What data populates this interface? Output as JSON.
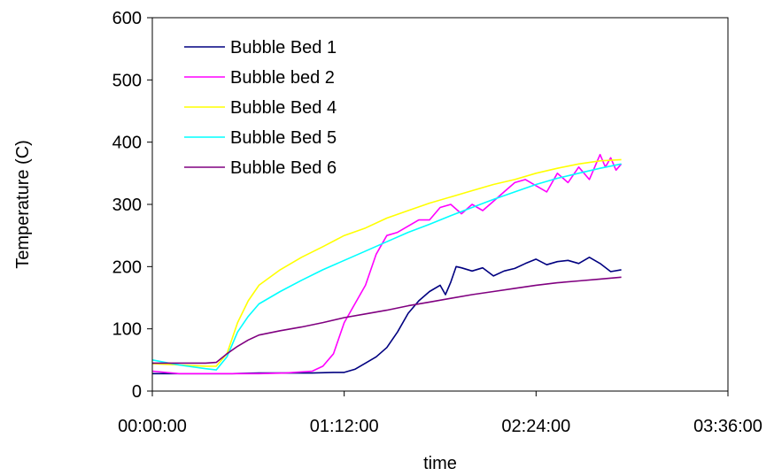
{
  "chart_data": {
    "type": "line",
    "title": "",
    "xlabel": "time",
    "ylabel": "Temperature (C)",
    "x_unit": "h:mm:ss",
    "xlim": [
      "00:00:00",
      "03:36:00"
    ],
    "ylim": [
      0,
      600
    ],
    "x_ticks": [
      "00:00:00",
      "01:12:00",
      "02:24:00",
      "03:36:00"
    ],
    "y_ticks": [
      0,
      100,
      200,
      300,
      400,
      500,
      600
    ],
    "grid": false,
    "legend": "top-left",
    "series": [
      {
        "name": "Bubble Bed 1",
        "color": "#000080",
        "points": [
          [
            "00:00:00",
            28
          ],
          [
            "00:10:00",
            28
          ],
          [
            "00:20:00",
            28
          ],
          [
            "00:30:00",
            28
          ],
          [
            "00:40:00",
            29
          ],
          [
            "00:50:00",
            29
          ],
          [
            "01:00:00",
            29
          ],
          [
            "01:08:00",
            30
          ],
          [
            "01:12:00",
            30
          ],
          [
            "01:16:00",
            35
          ],
          [
            "01:20:00",
            45
          ],
          [
            "01:24:00",
            55
          ],
          [
            "01:28:00",
            70
          ],
          [
            "01:32:00",
            95
          ],
          [
            "01:36:00",
            125
          ],
          [
            "01:40:00",
            145
          ],
          [
            "01:44:00",
            160
          ],
          [
            "01:48:00",
            170
          ],
          [
            "01:50:00",
            155
          ],
          [
            "01:52:00",
            175
          ],
          [
            "01:54:00",
            200
          ],
          [
            "01:56:00",
            198
          ],
          [
            "02:00:00",
            193
          ],
          [
            "02:04:00",
            198
          ],
          [
            "02:08:00",
            185
          ],
          [
            "02:12:00",
            193
          ],
          [
            "02:16:00",
            197
          ],
          [
            "02:20:00",
            205
          ],
          [
            "02:24:00",
            212
          ],
          [
            "02:28:00",
            203
          ],
          [
            "02:32:00",
            208
          ],
          [
            "02:36:00",
            210
          ],
          [
            "02:40:00",
            205
          ],
          [
            "02:44:00",
            215
          ],
          [
            "02:48:00",
            205
          ],
          [
            "02:52:00",
            192
          ],
          [
            "02:56:00",
            195
          ]
        ]
      },
      {
        "name": "Bubble bed 2",
        "color": "#FF00FF",
        "points": [
          [
            "00:00:00",
            32
          ],
          [
            "00:10:00",
            28
          ],
          [
            "00:20:00",
            28
          ],
          [
            "00:30:00",
            28
          ],
          [
            "00:40:00",
            28
          ],
          [
            "00:50:00",
            29
          ],
          [
            "01:00:00",
            32
          ],
          [
            "01:04:00",
            40
          ],
          [
            "01:08:00",
            60
          ],
          [
            "01:12:00",
            110
          ],
          [
            "01:16:00",
            140
          ],
          [
            "01:20:00",
            170
          ],
          [
            "01:24:00",
            220
          ],
          [
            "01:28:00",
            250
          ],
          [
            "01:32:00",
            255
          ],
          [
            "01:36:00",
            265
          ],
          [
            "01:40:00",
            275
          ],
          [
            "01:44:00",
            275
          ],
          [
            "01:48:00",
            295
          ],
          [
            "01:52:00",
            300
          ],
          [
            "01:56:00",
            285
          ],
          [
            "02:00:00",
            300
          ],
          [
            "02:04:00",
            290
          ],
          [
            "02:08:00",
            305
          ],
          [
            "02:12:00",
            320
          ],
          [
            "02:16:00",
            335
          ],
          [
            "02:20:00",
            340
          ],
          [
            "02:24:00",
            330
          ],
          [
            "02:28:00",
            320
          ],
          [
            "02:32:00",
            350
          ],
          [
            "02:36:00",
            335
          ],
          [
            "02:40:00",
            360
          ],
          [
            "02:44:00",
            340
          ],
          [
            "02:48:00",
            380
          ],
          [
            "02:50:00",
            360
          ],
          [
            "02:52:00",
            375
          ],
          [
            "02:54:00",
            355
          ],
          [
            "02:56:00",
            365
          ]
        ]
      },
      {
        "name": "Bubble Bed 4",
        "color": "#FFFF00",
        "points": [
          [
            "00:00:00",
            44
          ],
          [
            "00:10:00",
            42
          ],
          [
            "00:20:00",
            40
          ],
          [
            "00:24:00",
            40
          ],
          [
            "00:28:00",
            60
          ],
          [
            "00:32:00",
            110
          ],
          [
            "00:36:00",
            145
          ],
          [
            "00:40:00",
            170
          ],
          [
            "00:48:00",
            195
          ],
          [
            "00:56:00",
            215
          ],
          [
            "01:04:00",
            232
          ],
          [
            "01:12:00",
            250
          ],
          [
            "01:20:00",
            262
          ],
          [
            "01:28:00",
            278
          ],
          [
            "01:36:00",
            290
          ],
          [
            "01:44:00",
            302
          ],
          [
            "01:52:00",
            312
          ],
          [
            "02:00:00",
            322
          ],
          [
            "02:08:00",
            332
          ],
          [
            "02:16:00",
            340
          ],
          [
            "02:24:00",
            350
          ],
          [
            "02:32:00",
            358
          ],
          [
            "02:40:00",
            365
          ],
          [
            "02:48:00",
            370
          ],
          [
            "02:56:00",
            372
          ]
        ]
      },
      {
        "name": "Bubble Bed 5",
        "color": "#00FFFF",
        "points": [
          [
            "00:00:00",
            50
          ],
          [
            "00:10:00",
            42
          ],
          [
            "00:20:00",
            36
          ],
          [
            "00:24:00",
            34
          ],
          [
            "00:28:00",
            55
          ],
          [
            "00:32:00",
            95
          ],
          [
            "00:36:00",
            120
          ],
          [
            "00:40:00",
            140
          ],
          [
            "00:48:00",
            160
          ],
          [
            "00:56:00",
            178
          ],
          [
            "01:04:00",
            195
          ],
          [
            "01:12:00",
            210
          ],
          [
            "01:20:00",
            225
          ],
          [
            "01:28:00",
            240
          ],
          [
            "01:36:00",
            255
          ],
          [
            "01:44:00",
            268
          ],
          [
            "01:52:00",
            282
          ],
          [
            "02:00:00",
            295
          ],
          [
            "02:08:00",
            308
          ],
          [
            "02:16:00",
            320
          ],
          [
            "02:24:00",
            332
          ],
          [
            "02:32:00",
            342
          ],
          [
            "02:40:00",
            350
          ],
          [
            "02:48:00",
            358
          ],
          [
            "02:56:00",
            365
          ]
        ]
      },
      {
        "name": "Bubble Bed 6",
        "color": "#800080",
        "points": [
          [
            "00:00:00",
            45
          ],
          [
            "00:10:00",
            45
          ],
          [
            "00:20:00",
            45
          ],
          [
            "00:24:00",
            46
          ],
          [
            "00:28:00",
            60
          ],
          [
            "00:32:00",
            72
          ],
          [
            "00:36:00",
            82
          ],
          [
            "00:40:00",
            90
          ],
          [
            "00:48:00",
            97
          ],
          [
            "00:56:00",
            103
          ],
          [
            "01:04:00",
            110
          ],
          [
            "01:12:00",
            118
          ],
          [
            "01:20:00",
            124
          ],
          [
            "01:28:00",
            130
          ],
          [
            "01:36:00",
            137
          ],
          [
            "01:44:00",
            143
          ],
          [
            "01:52:00",
            149
          ],
          [
            "02:00:00",
            155
          ],
          [
            "02:08:00",
            160
          ],
          [
            "02:16:00",
            165
          ],
          [
            "02:24:00",
            170
          ],
          [
            "02:32:00",
            174
          ],
          [
            "02:40:00",
            177
          ],
          [
            "02:48:00",
            180
          ],
          [
            "02:56:00",
            183
          ]
        ]
      }
    ]
  }
}
